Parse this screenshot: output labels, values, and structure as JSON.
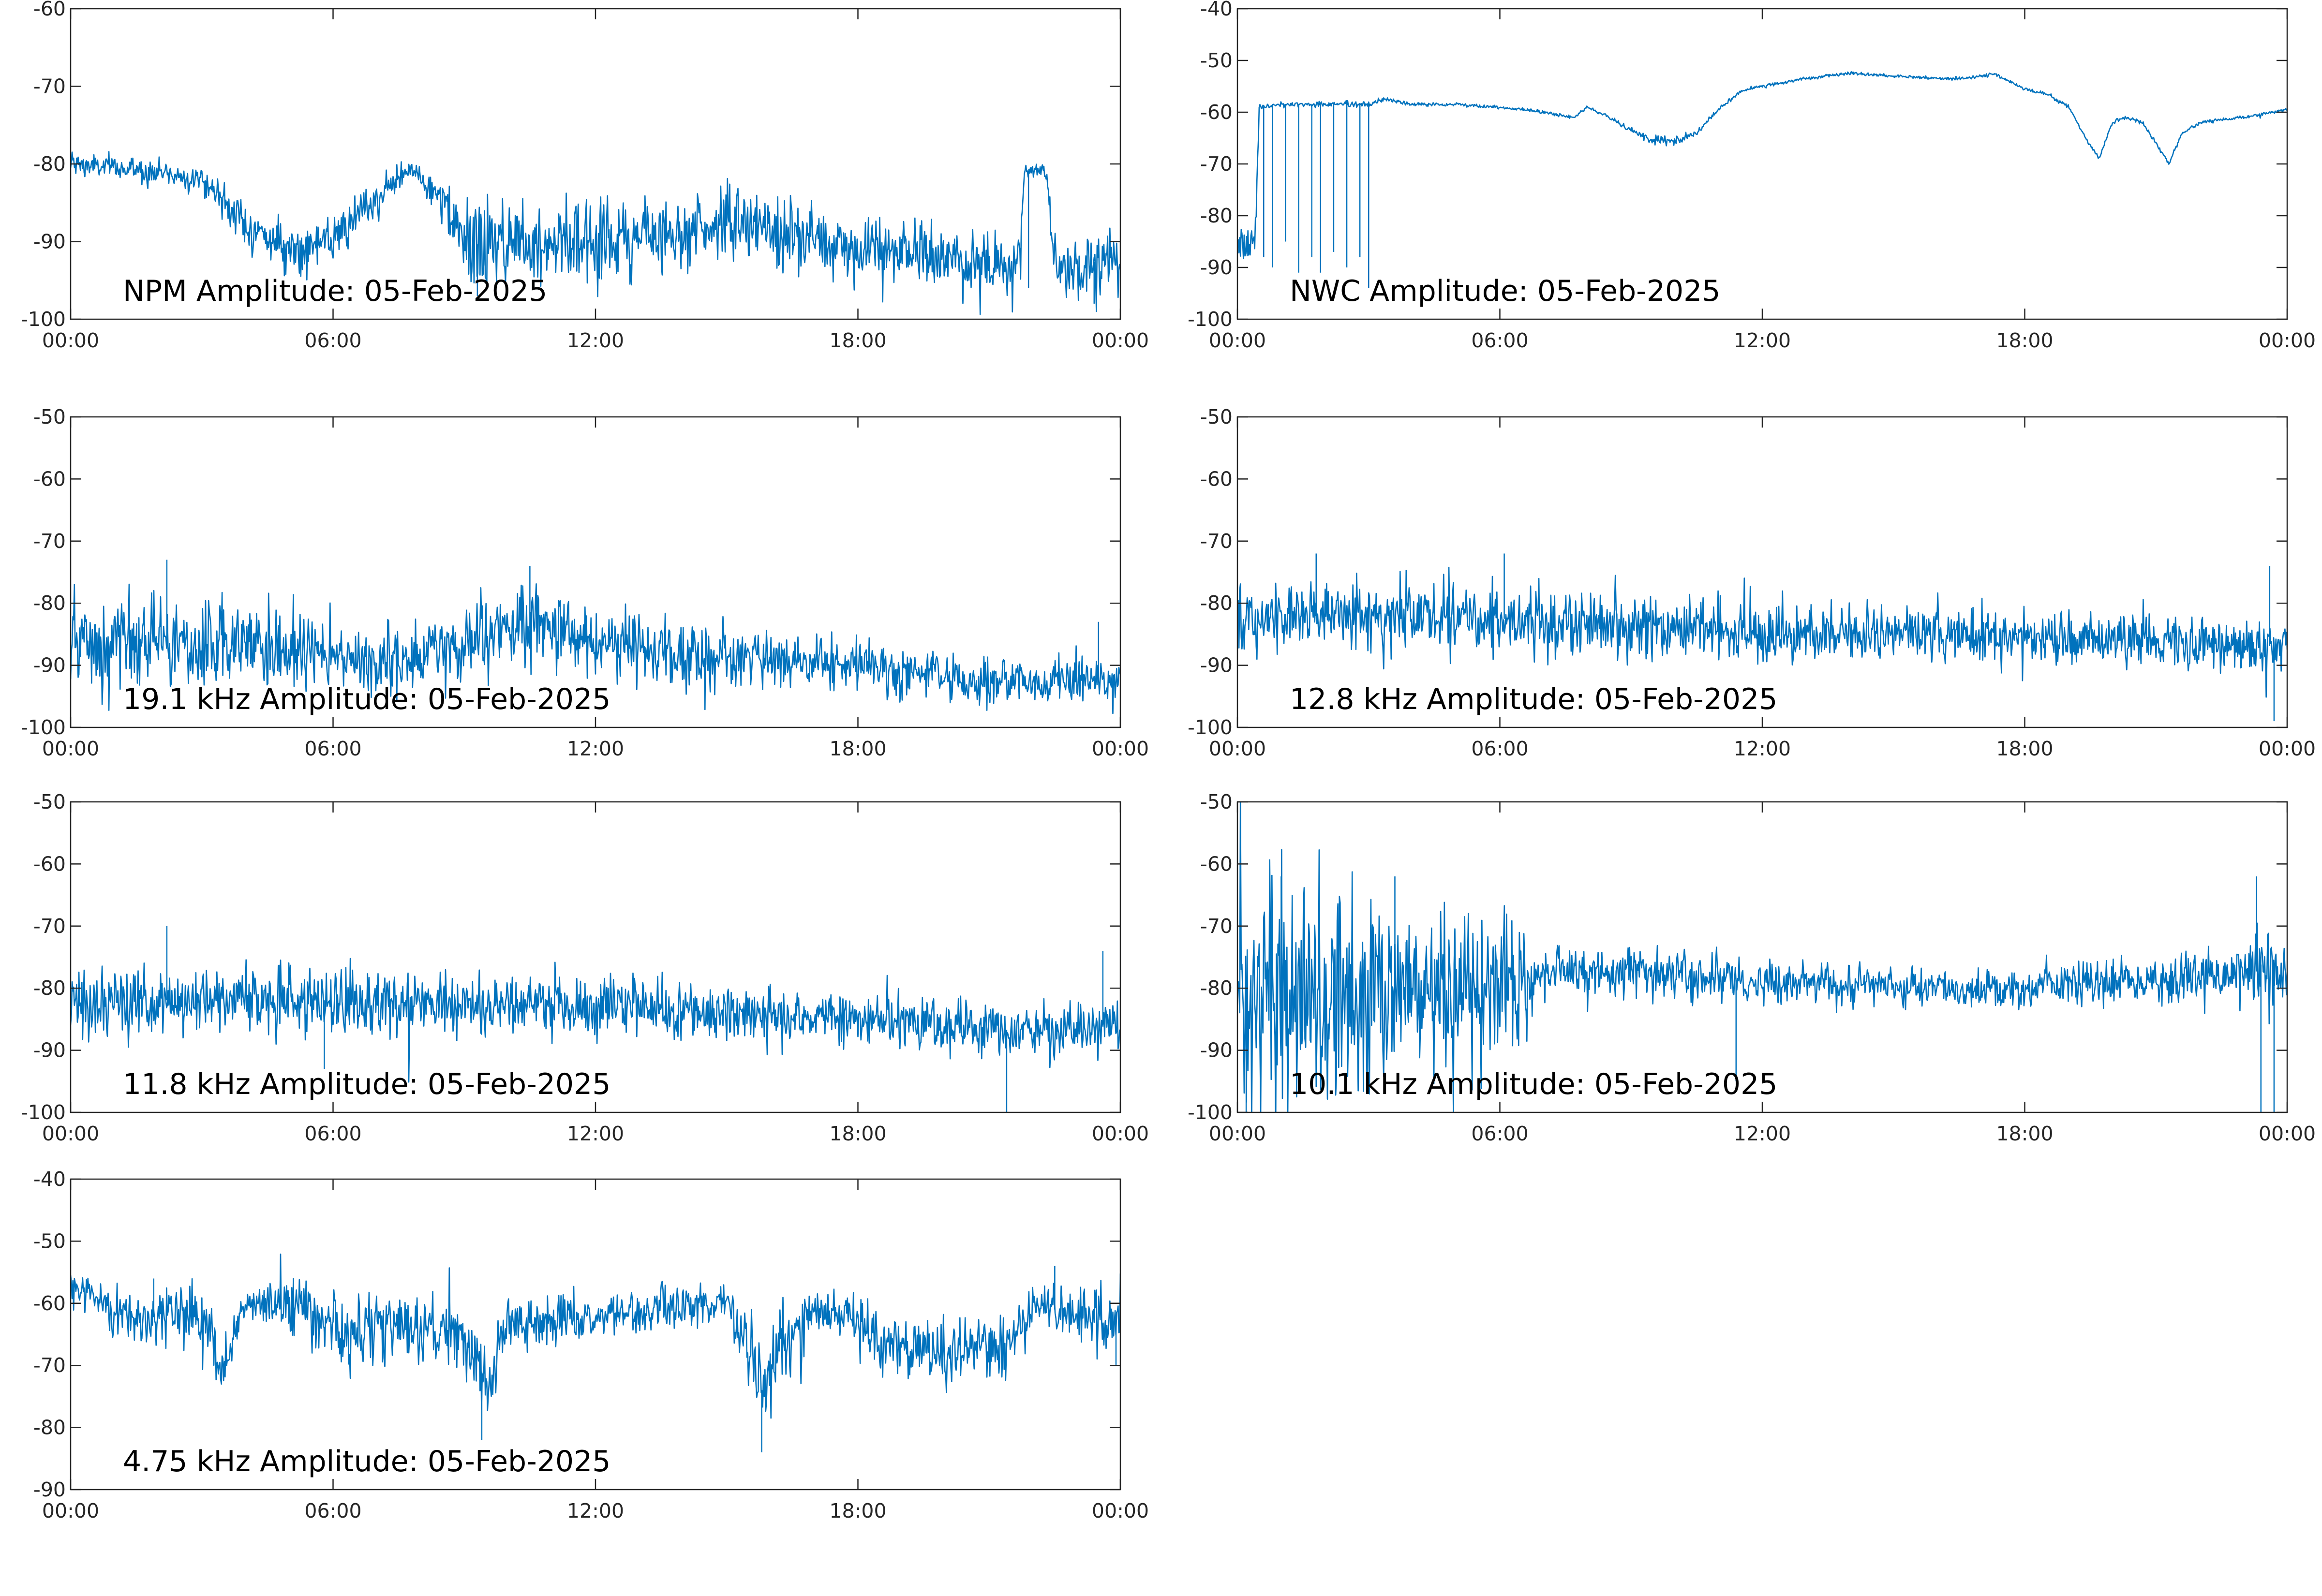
{
  "figure_title": "",
  "line_color": "#0072BD",
  "chart_data": [
    {
      "type": "line",
      "title": "NPM Amplitude: 05-Feb-2025",
      "xlabel": "",
      "ylabel": "",
      "x_unit": "hours",
      "x_ticks": [
        0,
        6,
        12,
        18,
        24
      ],
      "x_tick_labels": [
        "00:00",
        "06:00",
        "12:00",
        "18:00",
        "00:00"
      ],
      "xlim": [
        0,
        24
      ],
      "ylim": [
        -100,
        -60
      ],
      "y_ticks": [
        -100,
        -90,
        -80,
        -70,
        -60
      ],
      "y_tick_labels": [
        "-100",
        "-90",
        "-80",
        "-70",
        "-60"
      ],
      "grid": false,
      "series": [
        {
          "x": [
            0,
            1,
            2,
            3,
            3.4,
            4,
            5,
            6,
            7,
            7.8,
            8.5,
            9,
            10,
            11,
            12,
            13,
            14,
            15,
            16,
            17,
            18,
            19,
            20,
            21,
            21.7,
            21.8,
            22.3,
            22.5,
            23,
            24
          ],
          "values": [
            -80,
            -80.5,
            -81,
            -82,
            -84,
            -88,
            -91,
            -90,
            -84.5,
            -80.5,
            -85,
            -90.5,
            -90,
            -89.5,
            -90,
            -89.5,
            -88.5,
            -87.5,
            -88.5,
            -90,
            -91,
            -91.5,
            -92,
            -93,
            -93.5,
            -81,
            -81,
            -92.5,
            -93,
            -92
          ],
          "noise": [
            1.5,
            1.5,
            1.5,
            1.5,
            2,
            2.5,
            2.5,
            2.5,
            2,
            1.5,
            2.5,
            5,
            5.5,
            5.5,
            5,
            4.5,
            4,
            4,
            4.5,
            4,
            4,
            4,
            4,
            4,
            4,
            1,
            1,
            4,
            4,
            4
          ],
          "spikes": [
            [
              9.3,
              -97
            ],
            [
              21.9,
              -96
            ],
            [
              23.4,
              -98
            ]
          ]
        }
      ]
    },
    {
      "type": "line",
      "title": "NWC Amplitude: 05-Feb-2025",
      "xlabel": "",
      "ylabel": "",
      "x_unit": "hours",
      "x_ticks": [
        0,
        6,
        12,
        18,
        24
      ],
      "x_tick_labels": [
        "00:00",
        "06:00",
        "12:00",
        "18:00",
        "00:00"
      ],
      "xlim": [
        0,
        24
      ],
      "ylim": [
        -100,
        -40
      ],
      "y_ticks": [
        -100,
        -90,
        -80,
        -70,
        -60,
        -50,
        -40
      ],
      "y_tick_labels": [
        "-100",
        "-90",
        "-80",
        "-70",
        "-60",
        "-50",
        "-40"
      ],
      "grid": false,
      "series": [
        {
          "x": [
            0,
            0.4,
            0.5,
            1,
            2,
            3,
            3.4,
            4,
            5,
            6,
            7,
            7.7,
            8,
            8.5,
            9,
            9.5,
            10,
            10.5,
            11,
            11.5,
            12,
            13,
            14,
            15,
            16,
            16.5,
            17,
            17.3,
            18,
            18.5,
            19,
            19.4,
            19.7,
            20,
            20.3,
            20.7,
            21,
            21.3,
            21.6,
            22,
            23,
            24
          ],
          "values": [
            -85,
            -85,
            -59,
            -58.5,
            -58.5,
            -58.5,
            -57.5,
            -58.5,
            -58.5,
            -59,
            -60,
            -61,
            -59,
            -61,
            -63.5,
            -65.5,
            -65.5,
            -64,
            -59.5,
            -56,
            -55,
            -53.5,
            -52.5,
            -53,
            -53.5,
            -53.5,
            -53,
            -52.5,
            -55.5,
            -56.5,
            -59,
            -65,
            -69,
            -62,
            -61,
            -62,
            -66,
            -70,
            -64,
            -62,
            -61,
            -59.5
          ],
          "noise": [
            5,
            5,
            0.5,
            0.5,
            0.5,
            0.5,
            0.5,
            0.3,
            0.3,
            0.3,
            0.3,
            0.3,
            0.3,
            0.3,
            0.5,
            0.8,
            0.8,
            0.6,
            0.4,
            0.3,
            0.3,
            0.3,
            0.3,
            0.3,
            0.3,
            0.3,
            0.3,
            0.3,
            0.3,
            0.3,
            0.3,
            0.3,
            0.3,
            0.3,
            0.3,
            0.3,
            0.3,
            0.3,
            0.3,
            0.3,
            0.3,
            0.3
          ],
          "spikes": [
            [
              0.6,
              -88
            ],
            [
              0.8,
              -90
            ],
            [
              1.1,
              -85
            ],
            [
              1.4,
              -91
            ],
            [
              1.7,
              -88
            ],
            [
              1.9,
              -91
            ],
            [
              2.2,
              -87
            ],
            [
              2.5,
              -90
            ],
            [
              2.8,
              -88
            ],
            [
              3.0,
              -94
            ]
          ]
        }
      ]
    },
    {
      "type": "line",
      "title": "19.1 kHz Amplitude: 05-Feb-2025",
      "xlabel": "",
      "ylabel": "",
      "x_unit": "hours",
      "x_ticks": [
        0,
        6,
        12,
        18,
        24
      ],
      "x_tick_labels": [
        "00:00",
        "06:00",
        "12:00",
        "18:00",
        "00:00"
      ],
      "xlim": [
        0,
        24
      ],
      "ylim": [
        -100,
        -50
      ],
      "y_ticks": [
        -100,
        -90,
        -80,
        -70,
        -60,
        -50
      ],
      "y_tick_labels": [
        "-100",
        "-90",
        "-80",
        "-70",
        "-60",
        "-50"
      ],
      "grid": false,
      "series": [
        {
          "x": [
            0,
            2,
            4,
            6,
            8,
            9,
            10,
            11,
            12,
            14,
            16,
            18,
            20,
            22,
            24
          ],
          "values": [
            -87,
            -87,
            -87,
            -89,
            -89,
            -87,
            -84,
            -84,
            -86,
            -88.5,
            -89,
            -89.5,
            -92,
            -93,
            -92
          ],
          "noise": [
            7,
            6,
            6,
            5.5,
            5.5,
            6,
            6.5,
            6.5,
            6,
            5,
            4,
            4,
            3.5,
            3.5,
            4
          ],
          "spikes": [
            [
              2.2,
              -73
            ],
            [
              10.5,
              -74
            ],
            [
              23.5,
              -83
            ]
          ]
        }
      ]
    },
    {
      "type": "line",
      "title": "12.8 kHz Amplitude: 05-Feb-2025",
      "xlabel": "",
      "ylabel": "",
      "x_unit": "hours",
      "x_ticks": [
        0,
        6,
        12,
        18,
        24
      ],
      "x_tick_labels": [
        "00:00",
        "06:00",
        "12:00",
        "18:00",
        "00:00"
      ],
      "xlim": [
        0,
        24
      ],
      "ylim": [
        -100,
        -50
      ],
      "y_ticks": [
        -100,
        -90,
        -80,
        -70,
        -60,
        -50
      ],
      "y_tick_labels": [
        "-100",
        "-90",
        "-80",
        "-70",
        "-60",
        "-50"
      ],
      "grid": false,
      "series": [
        {
          "x": [
            0,
            2,
            4,
            6,
            8,
            10,
            12,
            14,
            16,
            18,
            20,
            22,
            24
          ],
          "values": [
            -83,
            -82,
            -82,
            -82.5,
            -83,
            -84,
            -85,
            -85,
            -85,
            -85.5,
            -86,
            -86.5,
            -87
          ],
          "noise": [
            5,
            5,
            5,
            5,
            5,
            4.5,
            4.5,
            4,
            4,
            4,
            4,
            4,
            4
          ],
          "spikes": [
            [
              1.8,
              -72
            ],
            [
              6.1,
              -72
            ],
            [
              23.6,
              -74
            ],
            [
              23.7,
              -99
            ]
          ]
        }
      ]
    },
    {
      "type": "line",
      "title": "11.8 kHz Amplitude: 05-Feb-2025",
      "xlabel": "",
      "ylabel": "",
      "x_unit": "hours",
      "x_ticks": [
        0,
        6,
        12,
        18,
        24
      ],
      "x_tick_labels": [
        "00:00",
        "06:00",
        "12:00",
        "18:00",
        "00:00"
      ],
      "xlim": [
        0,
        24
      ],
      "ylim": [
        -100,
        -50
      ],
      "y_ticks": [
        -100,
        -90,
        -80,
        -70,
        -60,
        -50
      ],
      "y_tick_labels": [
        "-100",
        "-90",
        "-80",
        "-70",
        "-60",
        "-50"
      ],
      "grid": false,
      "series": [
        {
          "x": [
            0,
            2,
            4,
            6,
            8,
            10,
            12,
            14,
            16,
            18,
            20,
            22,
            24
          ],
          "values": [
            -83,
            -82,
            -81.5,
            -82,
            -83,
            -83,
            -82.5,
            -84,
            -84.5,
            -85,
            -86,
            -87,
            -86
          ],
          "noise": [
            5,
            5,
            5,
            5,
            5,
            4.5,
            5,
            4.5,
            4,
            4,
            4,
            4,
            4
          ],
          "spikes": [
            [
              2.2,
              -70
            ],
            [
              5.8,
              -93
            ],
            [
              21.4,
              -100
            ],
            [
              23.6,
              -74
            ]
          ]
        }
      ]
    },
    {
      "type": "line",
      "title": "10.1 kHz Amplitude: 05-Feb-2025",
      "xlabel": "",
      "ylabel": "",
      "x_unit": "hours",
      "x_ticks": [
        0,
        6,
        12,
        18,
        24
      ],
      "x_tick_labels": [
        "00:00",
        "06:00",
        "12:00",
        "18:00",
        "00:00"
      ],
      "xlim": [
        0,
        24
      ],
      "ylim": [
        -100,
        -50
      ],
      "y_ticks": [
        -100,
        -90,
        -80,
        -70,
        -60,
        -50
      ],
      "y_tick_labels": [
        "-100",
        "-90",
        "-80",
        "-70",
        "-60",
        "-50"
      ],
      "grid": false,
      "series": [
        {
          "x": [
            0,
            1,
            2,
            3,
            3.5,
            4,
            5,
            6,
            6.6,
            7,
            8,
            10,
            12,
            14,
            16,
            18,
            20,
            22,
            23,
            23.5,
            24
          ],
          "values": [
            -82,
            -82,
            -82,
            -82,
            -80,
            -80,
            -80,
            -80,
            -80,
            -77,
            -77,
            -78,
            -79,
            -79.5,
            -80,
            -80,
            -79,
            -78,
            -77,
            -76,
            -77
          ],
          "noise": [
            16,
            17,
            17,
            16,
            15,
            12,
            11,
            10,
            10,
            4,
            3.5,
            3.5,
            3,
            3,
            3,
            3,
            3,
            3.5,
            4,
            6,
            5
          ],
          "spikes": [
            [
              0.2,
              -100
            ],
            [
              1.0,
              -62
            ],
            [
              3.6,
              -62
            ],
            [
              11.4,
              -95
            ],
            [
              23.3,
              -62
            ],
            [
              23.4,
              -100
            ],
            [
              23.7,
              -100
            ]
          ]
        }
      ]
    },
    {
      "type": "line",
      "title": "4.75 kHz Amplitude: 05-Feb-2025",
      "xlabel": "",
      "ylabel": "",
      "x_unit": "hours",
      "x_ticks": [
        0,
        6,
        12,
        18,
        24
      ],
      "x_tick_labels": [
        "00:00",
        "06:00",
        "12:00",
        "18:00",
        "00:00"
      ],
      "xlim": [
        0,
        24
      ],
      "ylim": [
        -90,
        -40
      ],
      "y_ticks": [
        -90,
        -80,
        -70,
        -60,
        -50,
        -40
      ],
      "y_tick_labels": [
        "-90",
        "-80",
        "-70",
        "-60",
        "-50",
        "-40"
      ],
      "grid": false,
      "series": [
        {
          "x": [
            0,
            0.8,
            1.5,
            2.5,
            3.2,
            3.5,
            4,
            5,
            5.8,
            6.2,
            7,
            8,
            8.5,
            9,
            9.6,
            10,
            11,
            12,
            13,
            14,
            15,
            15.4,
            15.8,
            16.3,
            17,
            17.8,
            18.5,
            19,
            20,
            21,
            21.5,
            22,
            23,
            24
          ],
          "values": [
            -57,
            -60,
            -63,
            -61,
            -65,
            -70,
            -60,
            -60,
            -63,
            -66,
            -63,
            -65,
            -63,
            -67,
            -73,
            -63,
            -63,
            -62,
            -61.5,
            -60.5,
            -59.5,
            -68,
            -74,
            -66,
            -62,
            -62,
            -67,
            -67,
            -68,
            -67,
            -67,
            -60,
            -62,
            -63
          ],
          "noise": [
            2,
            3,
            4,
            4,
            5,
            5,
            3,
            4,
            5,
            6,
            5,
            5,
            5,
            6,
            6,
            4,
            4,
            3.5,
            3,
            3,
            2,
            6,
            6,
            5,
            4,
            4,
            5,
            5,
            5,
            5,
            5,
            3,
            4,
            5
          ],
          "spikes": [
            [
              1.9,
              -56
            ],
            [
              9.4,
              -82
            ],
            [
              15.8,
              -84
            ],
            [
              22.5,
              -54
            ],
            [
              23.9,
              -70
            ]
          ]
        }
      ]
    }
  ]
}
